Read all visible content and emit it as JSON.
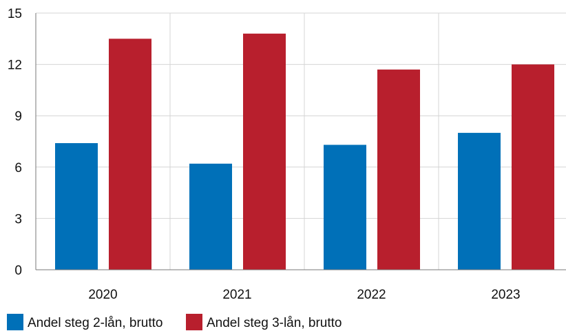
{
  "chart_data": {
    "type": "bar",
    "title": "",
    "xlabel": "",
    "ylabel": "",
    "categories": [
      "2020",
      "2021",
      "2022",
      "2023"
    ],
    "series": [
      {
        "name": "Andel steg 2-lån, brutto",
        "color": "#0070B8",
        "values": [
          7.4,
          6.2,
          7.3,
          8.0
        ]
      },
      {
        "name": "Andel steg 3-lån, brutto",
        "color": "#B81F2D",
        "values": [
          13.5,
          13.8,
          11.7,
          12.0
        ]
      }
    ],
    "ylim": [
      0,
      15
    ],
    "yticks": [
      "0",
      "3",
      "6",
      "9",
      "12",
      "15"
    ],
    "grid": true,
    "legend": "bottom-left"
  }
}
